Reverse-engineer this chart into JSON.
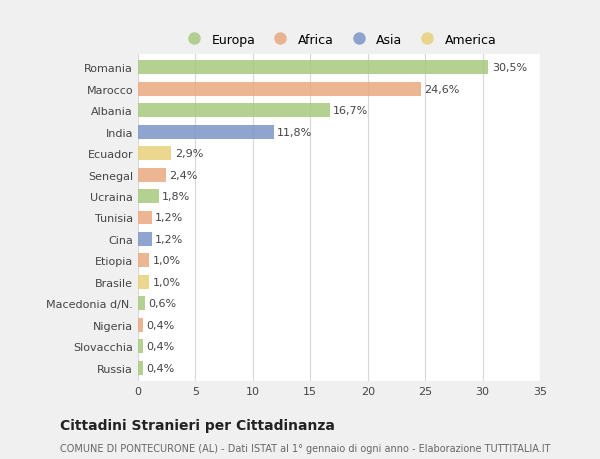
{
  "countries": [
    "Romania",
    "Marocco",
    "Albania",
    "India",
    "Ecuador",
    "Senegal",
    "Ucraina",
    "Tunisia",
    "Cina",
    "Etiopia",
    "Brasile",
    "Macedonia d/N.",
    "Nigeria",
    "Slovacchia",
    "Russia"
  ],
  "values": [
    30.5,
    24.6,
    16.7,
    11.8,
    2.9,
    2.4,
    1.8,
    1.2,
    1.2,
    1.0,
    1.0,
    0.6,
    0.4,
    0.4,
    0.4
  ],
  "labels": [
    "30,5%",
    "24,6%",
    "16,7%",
    "11,8%",
    "2,9%",
    "2,4%",
    "1,8%",
    "1,2%",
    "1,2%",
    "1,0%",
    "1,0%",
    "0,6%",
    "0,4%",
    "0,4%",
    "0,4%"
  ],
  "continents": [
    "Europa",
    "Africa",
    "Europa",
    "Asia",
    "America",
    "Africa",
    "Europa",
    "Africa",
    "Asia",
    "Africa",
    "America",
    "Europa",
    "Africa",
    "Europa",
    "Europa"
  ],
  "colors": {
    "Europa": "#a8c97f",
    "Africa": "#e8a97e",
    "Asia": "#7b96c8",
    "America": "#e8d07a"
  },
  "legend_order": [
    "Europa",
    "Africa",
    "Asia",
    "America"
  ],
  "xlim": [
    0,
    35
  ],
  "xticks": [
    0,
    5,
    10,
    15,
    20,
    25,
    30,
    35
  ],
  "title": "Cittadini Stranieri per Cittadinanza",
  "subtitle": "COMUNE DI PONTECURONE (AL) - Dati ISTAT al 1° gennaio di ogni anno - Elaborazione TUTTITALIA.IT",
  "bg_color": "#f0f0f0",
  "plot_bg_color": "#ffffff",
  "grid_color": "#d8d8d8",
  "bar_height": 0.65,
  "label_fontsize": 8,
  "tick_fontsize": 8,
  "title_fontsize": 10,
  "subtitle_fontsize": 7
}
